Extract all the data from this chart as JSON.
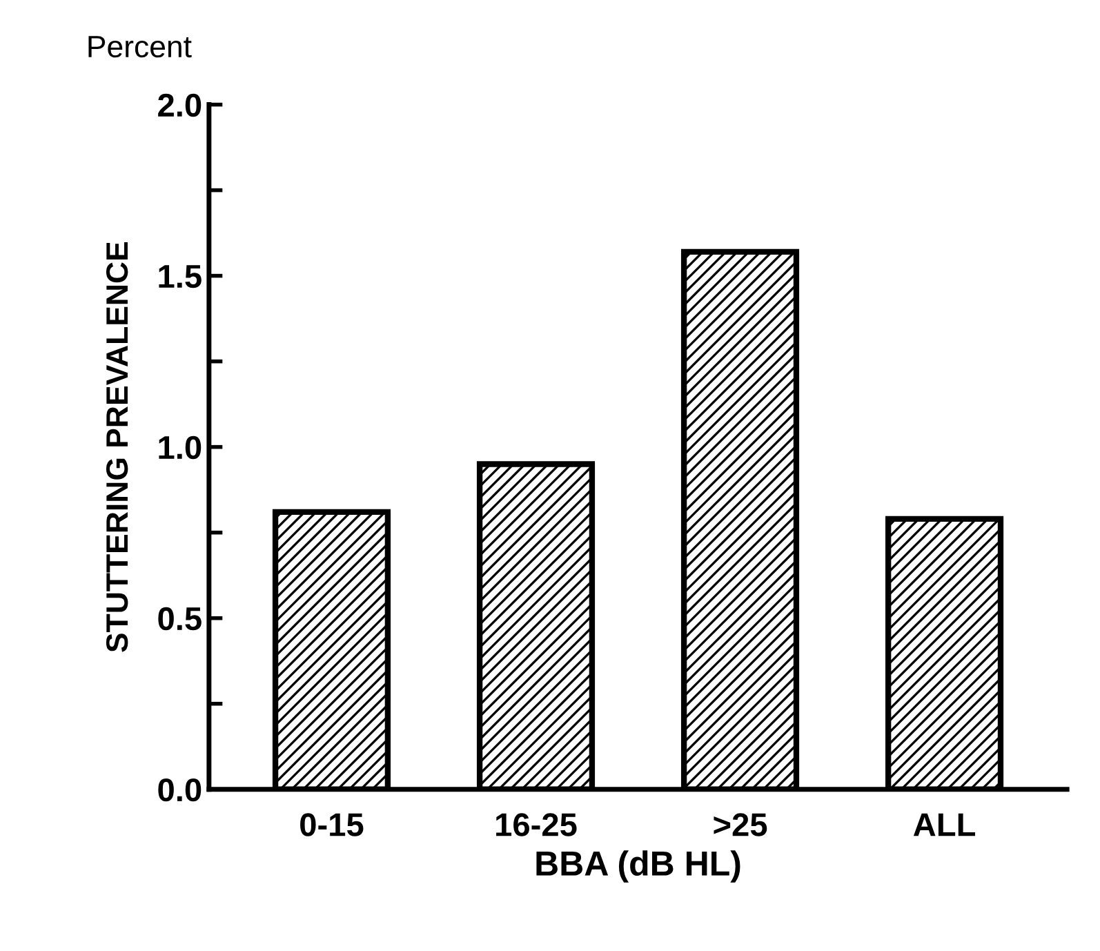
{
  "chart_data": {
    "type": "bar",
    "xlabel": "BBA (dB HL)",
    "ylabel": "STUTTERING PREVALENCE",
    "annotations": [
      "Percent"
    ],
    "categories": [
      "0-15",
      "16-25",
      ">25",
      "ALL"
    ],
    "values": [
      0.81,
      0.95,
      1.57,
      0.79
    ],
    "color": "#000000",
    "ylim": [
      0,
      2.0
    ],
    "yticks": [
      {
        "value": 0,
        "label": "0.0"
      },
      {
        "value": 0.25,
        "label": null
      },
      {
        "value": 0.5,
        "label": "0.5"
      },
      {
        "value": 0.75,
        "label": null
      },
      {
        "value": 1.0,
        "label": "1.0"
      },
      {
        "value": 1.25,
        "label": null
      },
      {
        "value": 1.5,
        "label": "1.5"
      },
      {
        "value": 1.75,
        "label": null
      },
      {
        "value": 2.0,
        "label": "2.0"
      }
    ],
    "grid": false,
    "legend": false
  }
}
